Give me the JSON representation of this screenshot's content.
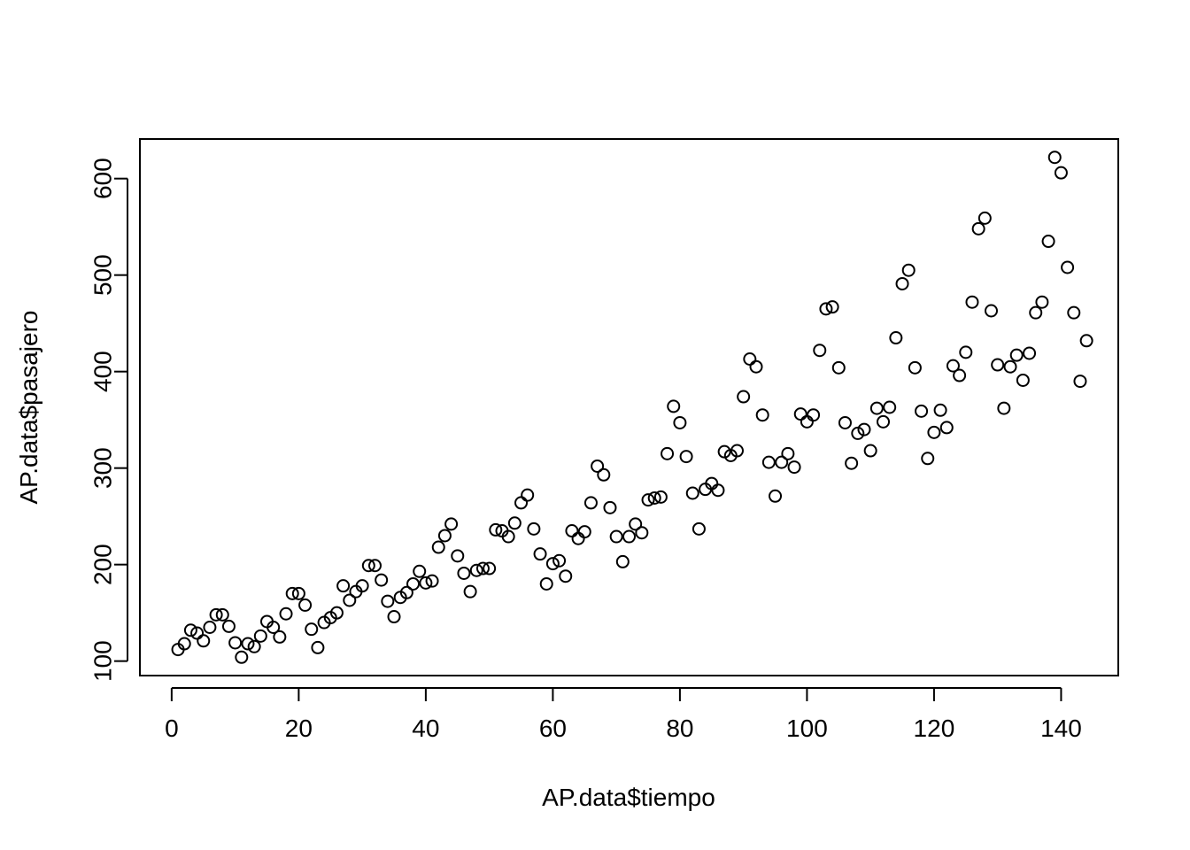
{
  "chart_data": {
    "type": "scatter",
    "xlabel": "AP.data$tiempo",
    "ylabel": "AP.data$pasajero",
    "xlim": [
      -5,
      149
    ],
    "ylim": [
      85,
      641
    ],
    "x_ticks": [
      0,
      20,
      40,
      60,
      80,
      100,
      120,
      140
    ],
    "y_ticks": [
      100,
      200,
      300,
      400,
      500,
      600
    ],
    "grid": false,
    "legend": "none",
    "marker": "open-circle",
    "colors": {
      "points": "#000000",
      "axes": "#000000",
      "background": "#ffffff"
    },
    "x": [
      1,
      2,
      3,
      4,
      5,
      6,
      7,
      8,
      9,
      10,
      11,
      12,
      13,
      14,
      15,
      16,
      17,
      18,
      19,
      20,
      21,
      22,
      23,
      24,
      25,
      26,
      27,
      28,
      29,
      30,
      31,
      32,
      33,
      34,
      35,
      36,
      37,
      38,
      39,
      40,
      41,
      42,
      43,
      44,
      45,
      46,
      47,
      48,
      49,
      50,
      51,
      52,
      53,
      54,
      55,
      56,
      57,
      58,
      59,
      60,
      61,
      62,
      63,
      64,
      65,
      66,
      67,
      68,
      69,
      70,
      71,
      72,
      73,
      74,
      75,
      76,
      77,
      78,
      79,
      80,
      81,
      82,
      83,
      84,
      85,
      86,
      87,
      88,
      89,
      90,
      91,
      92,
      93,
      94,
      95,
      96,
      97,
      98,
      99,
      100,
      101,
      102,
      103,
      104,
      105,
      106,
      107,
      108,
      109,
      110,
      111,
      112,
      113,
      114,
      115,
      116,
      117,
      118,
      119,
      120,
      121,
      122,
      123,
      124,
      125,
      126,
      127,
      128,
      129,
      130,
      131,
      132,
      133,
      134,
      135,
      136,
      137,
      138,
      139,
      140,
      141,
      142,
      143,
      144
    ],
    "y": [
      112,
      118,
      132,
      129,
      121,
      135,
      148,
      148,
      136,
      119,
      104,
      118,
      115,
      126,
      141,
      135,
      125,
      149,
      170,
      170,
      158,
      133,
      114,
      140,
      145,
      150,
      178,
      163,
      172,
      178,
      199,
      199,
      184,
      162,
      146,
      166,
      171,
      180,
      193,
      181,
      183,
      218,
      230,
      242,
      209,
      191,
      172,
      194,
      196,
      196,
      236,
      235,
      229,
      243,
      264,
      272,
      237,
      211,
      180,
      201,
      204,
      188,
      235,
      227,
      234,
      264,
      302,
      293,
      259,
      229,
      203,
      229,
      242,
      233,
      267,
      269,
      270,
      315,
      364,
      347,
      312,
      274,
      237,
      278,
      284,
      277,
      317,
      313,
      318,
      374,
      413,
      405,
      355,
      306,
      271,
      306,
      315,
      301,
      356,
      348,
      355,
      422,
      465,
      467,
      404,
      347,
      305,
      336,
      340,
      318,
      362,
      348,
      363,
      435,
      491,
      505,
      404,
      359,
      310,
      337,
      360,
      342,
      406,
      396,
      420,
      472,
      548,
      559,
      463,
      407,
      362,
      405,
      417,
      391,
      419,
      461,
      472,
      535,
      622,
      606,
      508,
      461,
      390,
      432
    ]
  }
}
